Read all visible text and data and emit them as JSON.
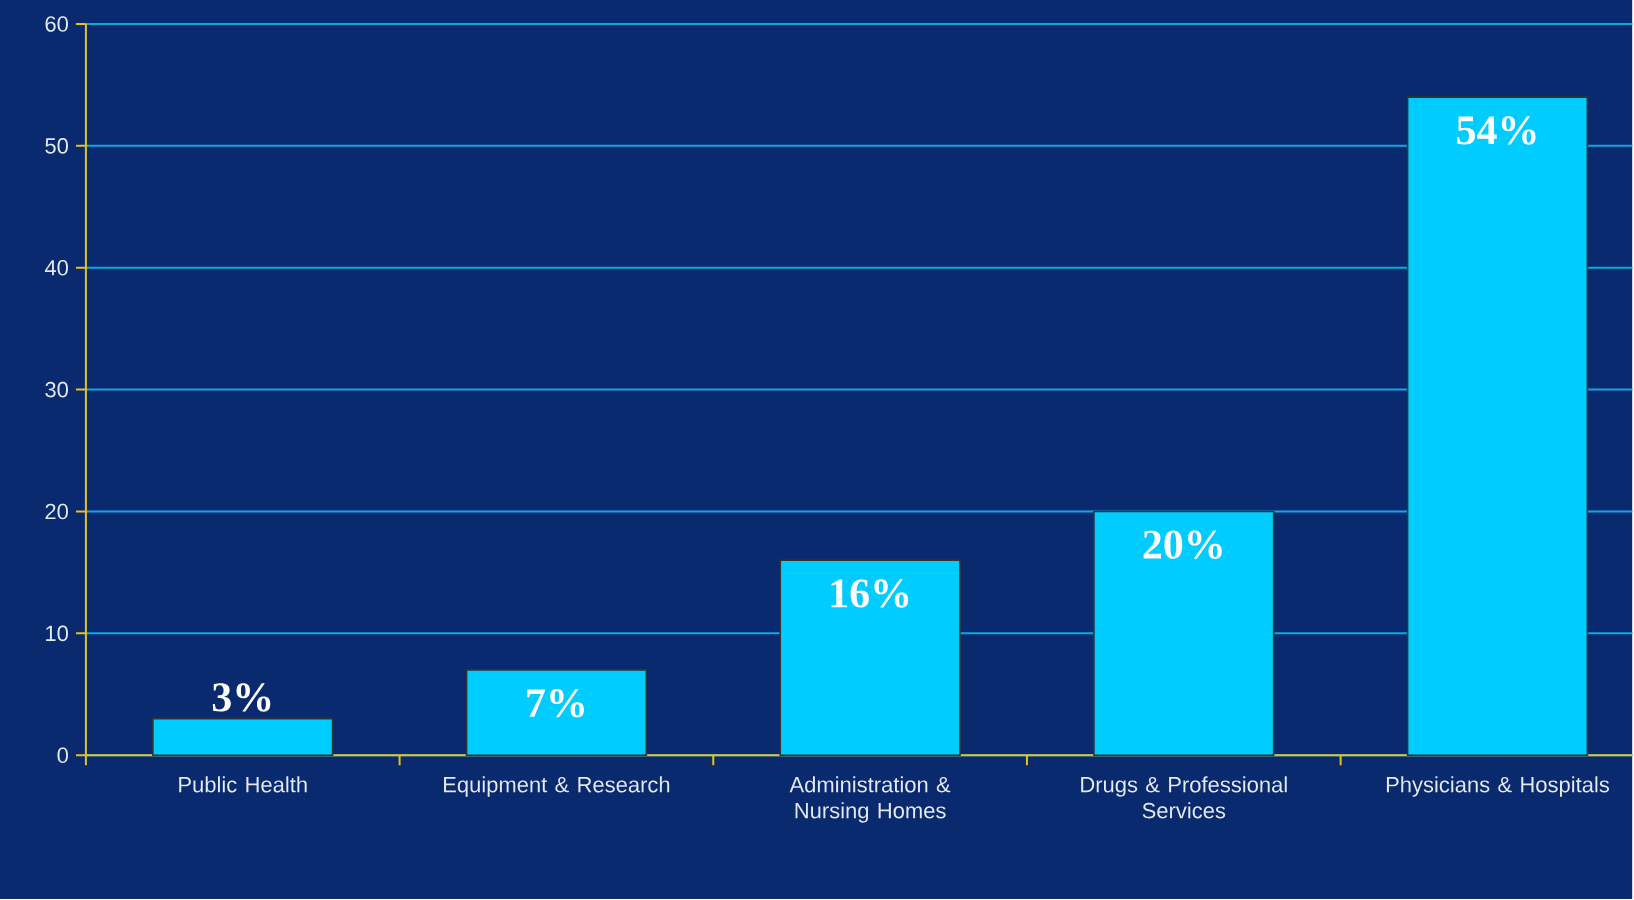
{
  "chart_data": {
    "type": "bar",
    "categories": [
      "Public Health",
      "Equipment & Research",
      "Administration & Nursing Homes",
      "Drugs & Professional Services",
      "Physicians & Hospitals"
    ],
    "values": [
      3,
      7,
      16,
      20,
      54
    ],
    "value_labels": [
      "3%",
      "7%",
      "16%",
      "20%",
      "54%"
    ],
    "color": "#00ccff",
    "ylim": [
      0,
      60
    ],
    "yticks": [
      0,
      10,
      20,
      30,
      40,
      50,
      60
    ],
    "grid": "y"
  }
}
